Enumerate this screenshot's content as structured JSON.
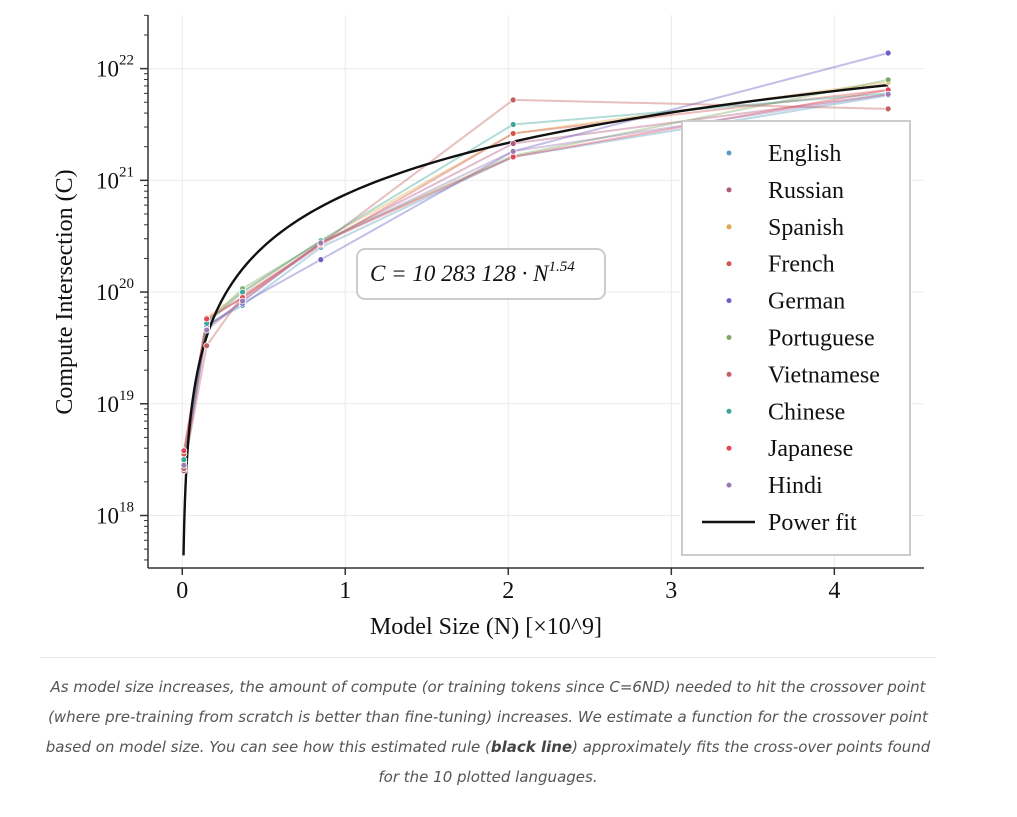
{
  "chart_data": {
    "type": "line",
    "xlabel": "Model Size (N) [×10^9]",
    "ylabel": "Compute Intersection (C)",
    "xlim": [
      -0.21,
      4.55
    ],
    "ylim_log10": [
      17.53,
      22.48
    ],
    "y_scale": "log",
    "grid": true,
    "x_ticks": [
      0,
      1,
      2,
      3,
      4
    ],
    "y_ticks": [
      {
        "base": "10",
        "exp": "18",
        "value": 18
      },
      {
        "base": "10",
        "exp": "19",
        "value": 19
      },
      {
        "base": "10",
        "exp": "20",
        "value": 20
      },
      {
        "base": "10",
        "exp": "21",
        "value": 21
      },
      {
        "base": "10",
        "exp": "22",
        "value": 22
      }
    ],
    "x": [
      0.01,
      0.15,
      0.37,
      0.85,
      2.03,
      4.33
    ],
    "series": [
      {
        "name": "English",
        "color": "#5b9ec0",
        "log10_values": [
          18.45,
          19.7,
          19.88,
          20.4,
          21.21,
          21.76
        ]
      },
      {
        "name": "Russian",
        "color": "#b5577f",
        "log10_values": [
          18.4,
          19.68,
          19.92,
          20.44,
          21.33,
          21.77
        ]
      },
      {
        "name": "Spanish",
        "color": "#e0a94a",
        "log10_values": [
          18.55,
          19.77,
          20.0,
          20.46,
          21.42,
          21.88
        ]
      },
      {
        "name": "French",
        "color": "#d1584d",
        "log10_values": [
          18.55,
          19.75,
          19.95,
          20.42,
          21.42,
          21.81
        ]
      },
      {
        "name": "German",
        "color": "#6a5fc6",
        "log10_values": [
          18.43,
          19.7,
          19.9,
          20.29,
          21.26,
          22.14
        ]
      },
      {
        "name": "Portuguese",
        "color": "#7aaa64",
        "log10_values": [
          18.48,
          19.73,
          20.03,
          20.45,
          21.22,
          21.9
        ]
      },
      {
        "name": "Vietnamese",
        "color": "#c1605c",
        "log10_values": [
          18.42,
          19.52,
          19.97,
          20.43,
          21.72,
          21.64
        ]
      },
      {
        "name": "Chinese",
        "color": "#3fa79a",
        "log10_values": [
          18.5,
          19.72,
          20.0,
          20.46,
          21.5,
          21.78
        ]
      },
      {
        "name": "Japanese",
        "color": "#e0465a",
        "log10_values": [
          18.58,
          19.76,
          19.95,
          20.44,
          21.21,
          21.81
        ]
      },
      {
        "name": "Hindi",
        "color": "#9b7bb0",
        "log10_values": [
          18.45,
          19.66,
          19.92,
          20.44,
          21.26,
          21.77
        ]
      }
    ],
    "fit": {
      "name": "Power fit",
      "coef": 10283128,
      "exponent": 1.54,
      "x_range": [
        0.008,
        4.33
      ],
      "color": "#111111"
    },
    "annotation": {
      "prefix": "C = 10 283 128 · N",
      "exp": "1.54"
    },
    "legend_placement": "right"
  },
  "caption": {
    "before": "As model size increases, the amount of compute (or training tokens since C=6ND) needed to hit the crossover point (where pre-training from scratch is better than fine-tuning) increases. We estimate a function for the crossover point based on model size. You can see how this estimated rule (",
    "bold": "black line",
    "after": ") approximately fits the cross-over points found for the 10 plotted languages."
  }
}
